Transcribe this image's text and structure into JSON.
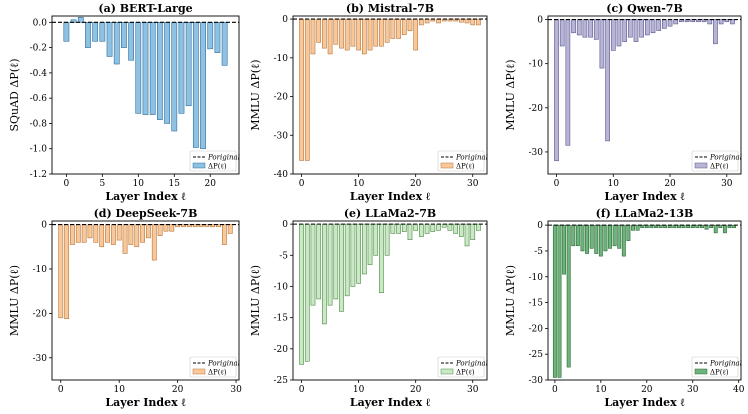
{
  "figure": {
    "charts": [
      {
        "id": "a",
        "type": "bar",
        "title": "(a) BERT-Large",
        "xlabel": "Layer Index ℓ",
        "ylabel": "SQuAD ΔP(ℓ)",
        "xlim": [
          -2,
          24
        ],
        "ylim": [
          -1.2,
          0.05
        ],
        "xticks": [
          0,
          5,
          10,
          15,
          20
        ],
        "yticks": [
          0.0,
          -0.2,
          -0.4,
          -0.6,
          -0.8,
          -1.0,
          -1.2
        ],
        "ytick_decimals": 1,
        "bar_color": "#8ec1e2",
        "edge_color": "#2f6f9e",
        "legend": {
          "original": "Poriginal",
          "delta": "ΔP(ℓ)"
        },
        "values": [
          -0.15,
          0.02,
          0.04,
          -0.2,
          -0.15,
          -0.15,
          -0.27,
          -0.33,
          -0.2,
          -0.3,
          -0.72,
          -0.73,
          -0.73,
          -0.77,
          -0.8,
          -0.86,
          -0.72,
          -0.66,
          -0.99,
          -1.0,
          -0.21,
          -0.24,
          -0.34
        ]
      },
      {
        "id": "b",
        "type": "bar",
        "title": "(b) Mistral-7B",
        "xlabel": "Layer Index ℓ",
        "ylabel": "MMLU ΔP(ℓ)",
        "xlim": [
          -1.5,
          32.5
        ],
        "ylim": [
          -40,
          0.8
        ],
        "xticks": [
          0,
          10,
          20,
          30
        ],
        "yticks": [
          0,
          -10,
          -20,
          -30,
          -40
        ],
        "ytick_decimals": 0,
        "bar_color": "#f9c89a",
        "edge_color": "#b8763a",
        "legend": {
          "original": "Poriginal",
          "delta": "ΔP(ℓ)"
        },
        "values": [
          -36.5,
          -36.5,
          -9,
          -6,
          -7.5,
          -9,
          -6.5,
          -7.5,
          -8,
          -7,
          -8,
          -9,
          -8,
          -7,
          -7,
          -6,
          -5,
          -5,
          -4,
          -3,
          -8,
          -1.5,
          -1,
          -0.5,
          -1,
          -0.5,
          -0.5,
          -0.5,
          -0.8,
          -1,
          -1.5,
          -1.5
        ]
      },
      {
        "id": "c",
        "type": "bar",
        "title": "(c) Qwen-7B",
        "xlabel": "Layer Index ℓ",
        "ylabel": "MMLU ΔP(ℓ)",
        "xlim": [
          -1.5,
          32.5
        ],
        "ylim": [
          -35,
          0.8
        ],
        "xticks": [
          0,
          10,
          20,
          30
        ],
        "yticks": [
          0,
          -10,
          -20,
          -30
        ],
        "ytick_decimals": 0,
        "bar_color": "#b7b4d6",
        "edge_color": "#5a5890",
        "legend": {
          "original": "Poriginal",
          "delta": "ΔP(ℓ)"
        },
        "values": [
          -32,
          -6,
          -28.5,
          -3,
          -3.5,
          -4,
          -4,
          -4.5,
          -11,
          -27.5,
          -7,
          -6,
          -5,
          -4,
          -5,
          -4,
          -3.5,
          -3,
          -2.5,
          -2,
          -1.5,
          -1,
          -0.5,
          -0.5,
          -0.5,
          -0.5,
          -0.5,
          -1,
          -5.5,
          -1,
          -0.5,
          -1
        ]
      },
      {
        "id": "d",
        "type": "bar",
        "title": "(d) DeepSeek-7B",
        "xlabel": "Layer Index ℓ",
        "ylabel": "MMLU ΔP(ℓ)",
        "xlim": [
          -1.5,
          30.5
        ],
        "ylim": [
          -35,
          0.8
        ],
        "xticks": [
          0,
          10,
          20,
          30
        ],
        "yticks": [
          0,
          -10,
          -20,
          -30
        ],
        "ytick_decimals": 0,
        "bar_color": "#f9c89a",
        "edge_color": "#b8763a",
        "legend": {
          "original": "Poriginal",
          "delta": "ΔP(ℓ)"
        },
        "values": [
          -21,
          -21.2,
          -4.5,
          -4,
          -4,
          -3,
          -4,
          -5,
          -4,
          -4.5,
          -3.5,
          -6.5,
          -4.5,
          -5,
          -4,
          -3,
          -8,
          -2.5,
          -1.5,
          -1.5,
          -0.5,
          -0.5,
          -0.5,
          -0.5,
          -0.5,
          -0.5,
          -0.5,
          -0.5,
          -4.5,
          -2
        ]
      },
      {
        "id": "e",
        "type": "bar",
        "title": "(e) LLaMa2-7B",
        "xlabel": "Layer Index ℓ",
        "ylabel": "MMLU ΔP(ℓ)",
        "xlim": [
          -1.5,
          32.5
        ],
        "ylim": [
          -25,
          0.5
        ],
        "xticks": [
          0,
          10,
          20,
          30
        ],
        "yticks": [
          0,
          -5,
          -10,
          -15,
          -20,
          -25
        ],
        "ytick_decimals": 0,
        "bar_color": "#c9e8c4",
        "edge_color": "#4f8a48",
        "legend": {
          "original": "Poriginal",
          "delta": "ΔP(ℓ)"
        },
        "values": [
          -22.5,
          -22,
          -13,
          -12,
          -16,
          -13,
          -12,
          -14,
          -11.5,
          -10,
          -9.5,
          -8,
          -6.5,
          -5,
          -11,
          -5,
          -1.5,
          -1.5,
          -1.2,
          -2.5,
          -1,
          -2,
          -1.5,
          -1.2,
          -1,
          -0.5,
          -1,
          -1.5,
          -2,
          -3.5,
          -2.5,
          -1
        ]
      },
      {
        "id": "f",
        "type": "bar",
        "title": "(f) LLaMa2-13B",
        "xlabel": "Layer Index ℓ",
        "ylabel": "MMLU ΔP(ℓ)",
        "xlim": [
          -1.5,
          40.5
        ],
        "ylim": [
          -30,
          0.8
        ],
        "xticks": [
          0,
          10,
          20,
          30,
          40
        ],
        "yticks": [
          0,
          -5,
          -10,
          -15,
          -20,
          -25,
          -30
        ],
        "ytick_decimals": 0,
        "bar_color": "#6fb37d",
        "edge_color": "#2a6b36",
        "legend": {
          "original": "Poriginal",
          "delta": "ΔP(ℓ)"
        },
        "values": [
          -29.5,
          -29.5,
          -9.5,
          -27.5,
          -4,
          -4,
          -5,
          -5.5,
          -4.5,
          -5.5,
          -6,
          -5,
          -4.5,
          -4,
          -4.5,
          -6,
          -3,
          -1,
          -1,
          -0.5,
          -0.5,
          -0.5,
          -0.5,
          -0.5,
          -0.5,
          -0.5,
          -0.5,
          -0.5,
          -0.5,
          -0.5,
          -0.5,
          -0.5,
          -0.5,
          -0.8,
          -0.5,
          -1.5,
          -0.5,
          -1.5,
          -0.5,
          -0.5
        ]
      }
    ]
  }
}
